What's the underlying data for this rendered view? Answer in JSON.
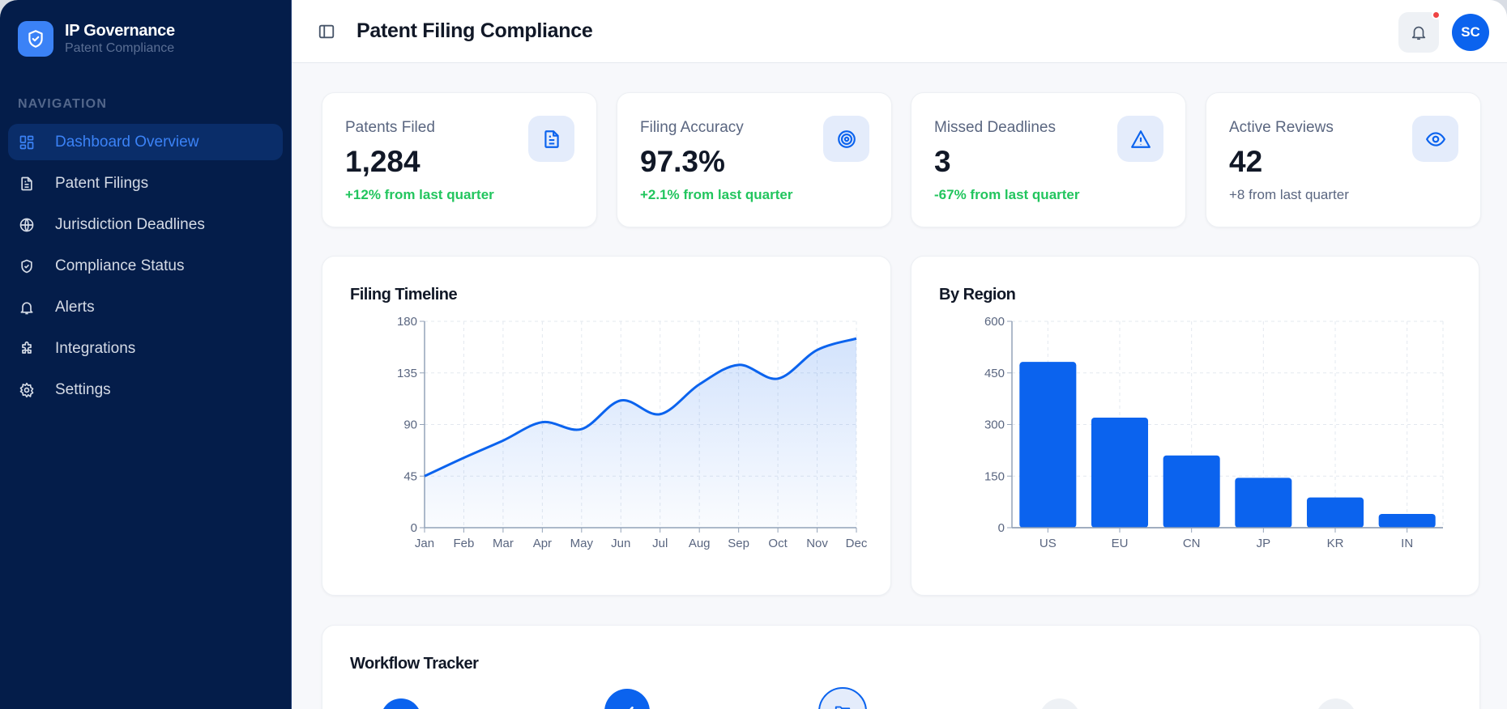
{
  "sidebar": {
    "brand_title": "IP Governance",
    "brand_subtitle": "Patent Compliance",
    "nav_heading": "NAVIGATION",
    "items": [
      {
        "label": "Dashboard Overview",
        "icon": "dashboard-icon",
        "active": true
      },
      {
        "label": "Patent Filings",
        "icon": "document-icon"
      },
      {
        "label": "Jurisdiction Deadlines",
        "icon": "globe-icon"
      },
      {
        "label": "Compliance Status",
        "icon": "shield-check-icon"
      },
      {
        "label": "Alerts",
        "icon": "bell-icon"
      },
      {
        "label": "Integrations",
        "icon": "puzzle-icon"
      },
      {
        "label": "Settings",
        "icon": "gear-icon"
      }
    ]
  },
  "header": {
    "title": "Patent Filing Compliance",
    "avatar_initials": "SC",
    "notification_dot": true
  },
  "stats": [
    {
      "label": "Patents Filed",
      "value": "1,284",
      "delta": "+12% from last quarter",
      "icon": "document-icon",
      "delta_color": "#22c55e"
    },
    {
      "label": "Filing Accuracy",
      "value": "97.3%",
      "delta": "+2.1% from last quarter",
      "icon": "target-icon",
      "delta_color": "#22c55e"
    },
    {
      "label": "Missed Deadlines",
      "value": "3",
      "delta": "-67% from last quarter",
      "icon": "warning-icon",
      "delta_color": "#22c55e"
    },
    {
      "label": "Active Reviews",
      "value": "42",
      "delta": "+8 from last quarter",
      "icon": "eye-icon",
      "delta_color": "#5a6680"
    }
  ],
  "charts": {
    "timeline_title": "Filing Timeline",
    "region_title": "By Region"
  },
  "workflow": {
    "title": "Workflow Tracker",
    "steps": [
      {
        "state": "complete"
      },
      {
        "state": "complete",
        "icon": "check-icon"
      },
      {
        "state": "current",
        "icon": "folder-icon"
      },
      {
        "state": "pending"
      },
      {
        "state": "pending"
      }
    ]
  },
  "colors": {
    "accent": "#0b63ee",
    "sidebar_bg": "#041d4a",
    "positive": "#22c55e",
    "alert_dot": "#ef4444"
  },
  "chart_data": [
    {
      "type": "area",
      "title": "Filing Timeline",
      "categories": [
        "Jan",
        "Feb",
        "Mar",
        "Apr",
        "May",
        "Jun",
        "Jul",
        "Aug",
        "Sep",
        "Oct",
        "Nov",
        "Dec"
      ],
      "values": [
        45,
        61,
        76,
        92,
        86,
        111,
        99,
        125,
        142,
        130,
        155,
        165
      ],
      "xlabel": "",
      "ylabel": "",
      "ylim": [
        0,
        180
      ],
      "yticks": [
        0,
        45,
        90,
        135,
        180
      ],
      "grid": true,
      "legend": "none",
      "color": "#0b63ee"
    },
    {
      "type": "bar",
      "title": "By Region",
      "categories": [
        "US",
        "EU",
        "CN",
        "JP",
        "KR",
        "IN"
      ],
      "values": [
        482,
        320,
        210,
        145,
        88,
        40
      ],
      "xlabel": "",
      "ylabel": "",
      "ylim": [
        0,
        600
      ],
      "yticks": [
        0,
        150,
        300,
        450,
        600
      ],
      "grid": true,
      "legend": "none",
      "color": "#0b63ee"
    }
  ]
}
